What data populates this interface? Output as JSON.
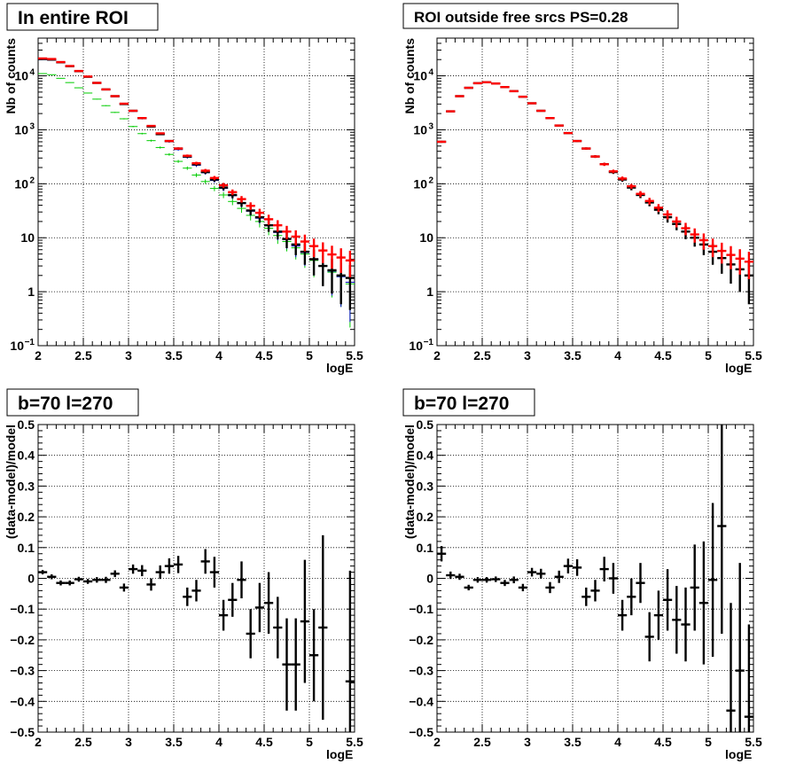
{
  "chart_data": [
    {
      "type": "scatter",
      "title": "In entire ROI",
      "xlabel": "logE",
      "ylabel": "Nb of counts",
      "xlim": [
        2,
        5.5
      ],
      "ylim": [
        0.1,
        50000
      ],
      "log_y": true,
      "grid": true,
      "x_ticks": [
        "2",
        "2.5",
        "3",
        "3.5",
        "4",
        "4.5",
        "5",
        "5.5"
      ],
      "y_ticks": [
        {
          "v": 0.1,
          "label": "10",
          "sup": "−1"
        },
        {
          "v": 1,
          "label": "1",
          "sup": ""
        },
        {
          "v": 10,
          "label": "10",
          "sup": ""
        },
        {
          "v": 100,
          "label": "10",
          "sup": "2"
        },
        {
          "v": 1000,
          "label": "10",
          "sup": "3"
        },
        {
          "v": 10000,
          "label": "10",
          "sup": "4"
        }
      ],
      "x": [
        2.05,
        2.15,
        2.25,
        2.35,
        2.45,
        2.55,
        2.65,
        2.75,
        2.85,
        2.95,
        3.05,
        3.15,
        3.25,
        3.35,
        3.45,
        3.55,
        3.65,
        3.75,
        3.85,
        3.95,
        4.05,
        4.15,
        4.25,
        4.35,
        4.45,
        4.55,
        4.65,
        4.75,
        4.85,
        4.95,
        5.05,
        5.15,
        5.25,
        5.35,
        5.45
      ],
      "series": [
        {
          "color": "#00cc00",
          "style": "thin",
          "values": [
            11000,
            10500,
            9000,
            7500,
            6000,
            4800,
            3700,
            2800,
            2100,
            1600,
            1150,
            850,
            630,
            470,
            350,
            260,
            195,
            145,
            110,
            82,
            62,
            47,
            35,
            26,
            20,
            15,
            11,
            8.5,
            6.5,
            5,
            3.8,
            3,
            2.3,
            1.9,
            1.4
          ]
        },
        {
          "color": "#0000cc",
          "style": "thin",
          "values": [
            20000,
            19500,
            17500,
            15000,
            12000,
            9500,
            7300,
            5500,
            4100,
            3000,
            2200,
            1600,
            1150,
            830,
            600,
            430,
            310,
            220,
            160,
            115,
            82,
            60,
            43,
            31,
            23,
            17,
            12.5,
            9.3,
            7,
            5.3,
            4,
            3,
            2.4,
            1.9,
            1.5
          ]
        },
        {
          "color": "#000000",
          "style": "thick",
          "values": [
            20500,
            20000,
            17800,
            15100,
            12200,
            9600,
            7400,
            5600,
            4200,
            3000,
            2250,
            1650,
            1150,
            830,
            620,
            450,
            320,
            230,
            165,
            120,
            85,
            62,
            44,
            32,
            24,
            17,
            13,
            9.5,
            7.5,
            5.5,
            4,
            3,
            2.5,
            2,
            1.8
          ]
        },
        {
          "color": "#ff0000",
          "style": "thick",
          "values": [
            21000,
            20500,
            18000,
            15200,
            12300,
            9700,
            7400,
            5600,
            4200,
            3050,
            2250,
            1650,
            1180,
            860,
            620,
            450,
            330,
            240,
            175,
            128,
            94,
            70,
            52,
            39,
            29,
            22,
            17,
            13,
            10.5,
            8.5,
            7,
            5.8,
            4.9,
            4.3,
            3.8
          ]
        }
      ]
    },
    {
      "type": "scatter",
      "title": "ROI outside free srcs PS=0.28",
      "xlabel": "logE",
      "ylabel": "Nb of counts",
      "xlim": [
        2,
        5.5
      ],
      "ylim": [
        0.1,
        50000
      ],
      "log_y": true,
      "grid": true,
      "x_ticks": [
        "2",
        "2.5",
        "3",
        "3.5",
        "4",
        "4.5",
        "5",
        "5.5"
      ],
      "y_ticks": [
        {
          "v": 0.1,
          "label": "10",
          "sup": "−1"
        },
        {
          "v": 1,
          "label": "1",
          "sup": ""
        },
        {
          "v": 10,
          "label": "10",
          "sup": ""
        },
        {
          "v": 100,
          "label": "10",
          "sup": "2"
        },
        {
          "v": 1000,
          "label": "10",
          "sup": "3"
        },
        {
          "v": 10000,
          "label": "10",
          "sup": "4"
        }
      ],
      "x": [
        2.05,
        2.15,
        2.25,
        2.35,
        2.45,
        2.55,
        2.65,
        2.75,
        2.85,
        2.95,
        3.05,
        3.15,
        3.25,
        3.35,
        3.45,
        3.55,
        3.65,
        3.75,
        3.85,
        3.95,
        4.05,
        4.15,
        4.25,
        4.35,
        4.45,
        4.55,
        4.65,
        4.75,
        4.85,
        4.95,
        5.05,
        5.15,
        5.25,
        5.35,
        5.45
      ],
      "series": [
        {
          "color": "#000000",
          "style": "thick",
          "values": [
            600,
            2200,
            4200,
            6000,
            7300,
            7600,
            7200,
            6200,
            5200,
            4100,
            3100,
            2250,
            1650,
            1200,
            870,
            620,
            450,
            320,
            230,
            165,
            120,
            85,
            62,
            45,
            33,
            24,
            18,
            13,
            10,
            7.5,
            5.5,
            4.2,
            3.2,
            2.6,
            2
          ]
        },
        {
          "color": "#ff0000",
          "style": "thick",
          "values": [
            600,
            2200,
            4200,
            6000,
            7300,
            7600,
            7200,
            6200,
            5200,
            4100,
            3100,
            2250,
            1650,
            1200,
            870,
            620,
            450,
            320,
            230,
            170,
            125,
            90,
            65,
            48,
            36,
            27,
            20,
            15,
            11.5,
            9,
            7,
            5.7,
            4.8,
            4.1,
            3.6
          ]
        }
      ]
    },
    {
      "type": "scatter",
      "title": "b=70 l=270",
      "xlabel": "logE",
      "ylabel": "(data-model)/model",
      "xlim": [
        2,
        5.5
      ],
      "ylim": [
        -0.5,
        0.5
      ],
      "log_y": false,
      "grid": true,
      "x_ticks": [
        "2",
        "2.5",
        "3",
        "3.5",
        "4",
        "4.5",
        "5",
        "5.5"
      ],
      "y_ticks": [
        {
          "v": -0.5,
          "label": "−0.5",
          "sup": ""
        },
        {
          "v": -0.4,
          "label": "−0.4",
          "sup": ""
        },
        {
          "v": -0.3,
          "label": "−0.3",
          "sup": ""
        },
        {
          "v": -0.2,
          "label": "−0.2",
          "sup": ""
        },
        {
          "v": -0.1,
          "label": "−0.1",
          "sup": ""
        },
        {
          "v": 0,
          "label": "0",
          "sup": ""
        },
        {
          "v": 0.1,
          "label": "0.1",
          "sup": ""
        },
        {
          "v": 0.2,
          "label": "0.2",
          "sup": ""
        },
        {
          "v": 0.3,
          "label": "0.3",
          "sup": ""
        },
        {
          "v": 0.4,
          "label": "0.4",
          "sup": ""
        },
        {
          "v": 0.5,
          "label": "0.5",
          "sup": ""
        }
      ],
      "x": [
        2.05,
        2.15,
        2.25,
        2.35,
        2.45,
        2.55,
        2.65,
        2.75,
        2.85,
        2.95,
        3.05,
        3.15,
        3.25,
        3.35,
        3.45,
        3.55,
        3.65,
        3.75,
        3.85,
        3.95,
        4.05,
        4.15,
        4.25,
        4.35,
        4.45,
        4.55,
        4.65,
        4.75,
        4.85,
        4.95,
        5.05,
        5.15,
        5.25,
        5.35,
        5.45
      ],
      "series": [
        {
          "color": "#000000",
          "style": "thick",
          "values": [
            0.02,
            0.005,
            -0.015,
            -0.015,
            -0.003,
            -0.01,
            -0.005,
            -0.005,
            0.015,
            -0.03,
            0.03,
            0.025,
            -0.02,
            0.02,
            0.04,
            0.045,
            -0.06,
            -0.04,
            0.055,
            0.02,
            -0.12,
            -0.07,
            -0.005,
            -0.18,
            -0.095,
            -0.08,
            -0.16,
            -0.28,
            -0.28,
            -0.14,
            -0.25,
            -0.16,
            null,
            null,
            -0.335
          ],
          "errors": [
            0.007,
            0.008,
            0.008,
            0.008,
            0.008,
            0.008,
            0.009,
            0.01,
            0.011,
            0.013,
            0.015,
            0.018,
            0.02,
            0.022,
            0.025,
            0.028,
            0.03,
            0.035,
            0.04,
            0.05,
            0.05,
            0.055,
            0.06,
            0.08,
            0.08,
            0.1,
            0.1,
            0.15,
            0.15,
            0.2,
            0.15,
            0.3,
            null,
            null,
            0.36
          ]
        }
      ]
    },
    {
      "type": "scatter",
      "title": "b=70 l=270",
      "xlabel": "logE",
      "ylabel": "(data-model)/model",
      "xlim": [
        2,
        5.5
      ],
      "ylim": [
        -0.5,
        0.5
      ],
      "log_y": false,
      "grid": true,
      "x_ticks": [
        "2",
        "2.5",
        "3",
        "3.5",
        "4",
        "4.5",
        "5",
        "5.5"
      ],
      "y_ticks": [
        {
          "v": -0.5,
          "label": "−0.5",
          "sup": ""
        },
        {
          "v": -0.4,
          "label": "−0.4",
          "sup": ""
        },
        {
          "v": -0.3,
          "label": "−0.3",
          "sup": ""
        },
        {
          "v": -0.2,
          "label": "−0.2",
          "sup": ""
        },
        {
          "v": -0.1,
          "label": "−0.1",
          "sup": ""
        },
        {
          "v": 0,
          "label": "0",
          "sup": ""
        },
        {
          "v": 0.1,
          "label": "0.1",
          "sup": ""
        },
        {
          "v": 0.2,
          "label": "0.2",
          "sup": ""
        },
        {
          "v": 0.3,
          "label": "0.3",
          "sup": ""
        },
        {
          "v": 0.4,
          "label": "0.4",
          "sup": ""
        },
        {
          "v": 0.5,
          "label": "0.5",
          "sup": ""
        }
      ],
      "x": [
        2.05,
        2.15,
        2.25,
        2.35,
        2.45,
        2.55,
        2.65,
        2.75,
        2.85,
        2.95,
        3.05,
        3.15,
        3.25,
        3.35,
        3.45,
        3.55,
        3.65,
        3.75,
        3.85,
        3.95,
        4.05,
        4.15,
        4.25,
        4.35,
        4.45,
        4.55,
        4.65,
        4.75,
        4.85,
        4.95,
        5.05,
        5.15,
        5.25,
        5.35,
        5.45
      ],
      "series": [
        {
          "color": "#000000",
          "style": "thick",
          "values": [
            0.08,
            0.01,
            0.005,
            -0.03,
            -0.005,
            -0.005,
            -0.003,
            -0.015,
            -0.005,
            -0.03,
            0.02,
            0.015,
            -0.03,
            0.005,
            0.04,
            0.035,
            -0.06,
            -0.04,
            0.03,
            0.0,
            -0.12,
            -0.06,
            -0.015,
            -0.19,
            -0.12,
            -0.07,
            -0.135,
            -0.15,
            -0.03,
            -0.08,
            -0.005,
            0.17,
            -0.43,
            -0.3,
            -0.45
          ],
          "errors": [
            0.025,
            0.012,
            0.01,
            0.009,
            0.009,
            0.009,
            0.009,
            0.01,
            0.011,
            0.012,
            0.014,
            0.016,
            0.018,
            0.02,
            0.024,
            0.027,
            0.03,
            0.035,
            0.04,
            0.05,
            0.05,
            0.06,
            0.065,
            0.08,
            0.08,
            0.1,
            0.11,
            0.12,
            0.14,
            0.2,
            0.25,
            0.35,
            0.35,
            0.35,
            0.3
          ]
        }
      ]
    }
  ]
}
